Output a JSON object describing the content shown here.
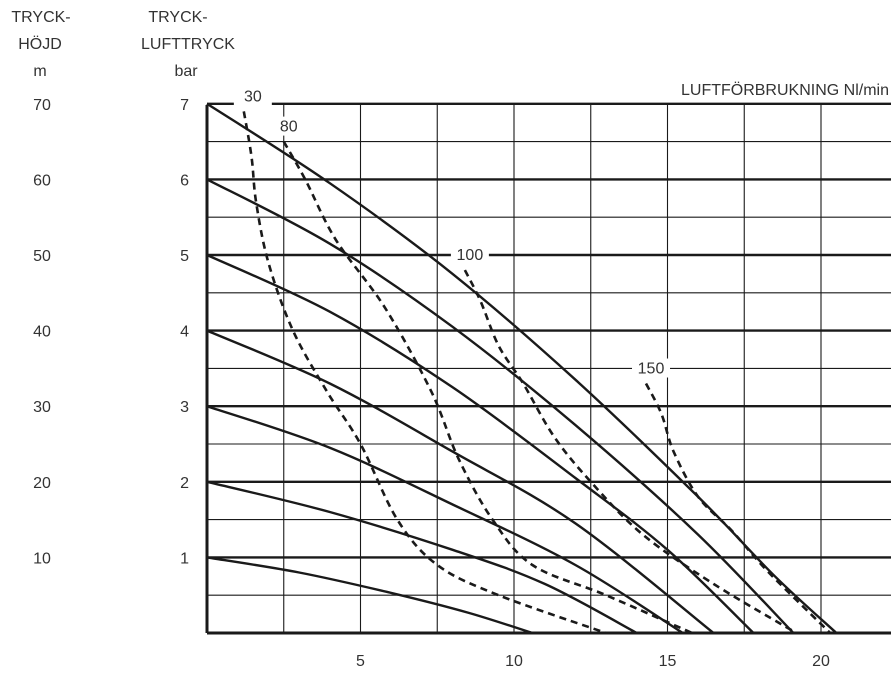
{
  "chart_data": {
    "type": "line",
    "title": "",
    "left_axis_head": [
      "TRYCK-",
      "HÖJD",
      "m"
    ],
    "right_axis_head": [
      "TRYCK-",
      "LUFTTRYCK",
      "bar"
    ],
    "consumption_title": "LUFTFÖRBRUKNING Nl/min",
    "xlim": [
      0,
      22
    ],
    "ylim": [
      0,
      7
    ],
    "x_ticks": [
      "5",
      "10",
      "15",
      "20"
    ],
    "x_tick_values": [
      5,
      10,
      15,
      20
    ],
    "bar_ticks": [
      "1",
      "2",
      "3",
      "4",
      "5",
      "6",
      "7"
    ],
    "height_ticks": [
      "10",
      "20",
      "30",
      "40",
      "50",
      "60",
      "70"
    ],
    "grid": true,
    "pressure_curves": [
      {
        "air_bar": 1,
        "points": [
          [
            0,
            1
          ],
          [
            3,
            0.8
          ],
          [
            6,
            0.53
          ],
          [
            8.5,
            0.27
          ],
          [
            10.6,
            0
          ]
        ]
      },
      {
        "air_bar": 2,
        "points": [
          [
            0,
            2
          ],
          [
            4,
            1.6
          ],
          [
            8,
            1.1
          ],
          [
            11,
            0.65
          ],
          [
            14,
            0
          ]
        ]
      },
      {
        "air_bar": 3,
        "points": [
          [
            0,
            3
          ],
          [
            4,
            2.45
          ],
          [
            8,
            1.7
          ],
          [
            12,
            0.9
          ],
          [
            15.5,
            0
          ]
        ]
      },
      {
        "air_bar": 4,
        "points": [
          [
            0,
            4
          ],
          [
            4,
            3.3
          ],
          [
            8,
            2.4
          ],
          [
            12,
            1.45
          ],
          [
            16.5,
            0
          ]
        ]
      },
      {
        "air_bar": 5,
        "points": [
          [
            0,
            5
          ],
          [
            4,
            4.25
          ],
          [
            8,
            3.25
          ],
          [
            12,
            2.05
          ],
          [
            15,
            1.1
          ],
          [
            17.8,
            0
          ]
        ]
      },
      {
        "air_bar": 6,
        "points": [
          [
            0,
            6
          ],
          [
            4,
            5.15
          ],
          [
            8,
            4.05
          ],
          [
            12,
            2.75
          ],
          [
            16,
            1.3
          ],
          [
            19.1,
            0
          ]
        ]
      },
      {
        "air_bar": 7,
        "points": [
          [
            0,
            7
          ],
          [
            4,
            5.95
          ],
          [
            8,
            4.75
          ],
          [
            12,
            3.35
          ],
          [
            16,
            1.8
          ],
          [
            18.5,
            0.75
          ],
          [
            20.5,
            0
          ]
        ]
      }
    ],
    "consumption_curves": [
      {
        "label": "30",
        "points": [
          [
            1.2,
            6.9
          ],
          [
            1.45,
            6.3
          ],
          [
            1.6,
            5.7
          ],
          [
            2,
            4.9
          ],
          [
            2.8,
            4.0
          ],
          [
            3.9,
            3.2
          ],
          [
            5,
            2.5
          ],
          [
            6.2,
            1.5
          ],
          [
            7.5,
            0.9
          ],
          [
            9.5,
            0.5
          ],
          [
            13,
            0
          ]
        ]
      },
      {
        "label": "80",
        "points": [
          [
            2.5,
            6.5
          ],
          [
            3.2,
            6.0
          ],
          [
            4.2,
            5.2
          ],
          [
            5.8,
            4.3
          ],
          [
            7.3,
            3.2
          ],
          [
            8.2,
            2.3
          ],
          [
            9.3,
            1.5
          ],
          [
            10.6,
            0.9
          ],
          [
            13,
            0.5
          ],
          [
            15.8,
            0
          ]
        ]
      },
      {
        "label": "100",
        "points": [
          [
            8.4,
            4.8
          ],
          [
            8.9,
            4.4
          ],
          [
            9.5,
            3.8
          ],
          [
            10.3,
            3.3
          ],
          [
            11.3,
            2.6
          ],
          [
            12.5,
            2.0
          ],
          [
            14.2,
            1.3
          ],
          [
            16.5,
            0.65
          ],
          [
            19.2,
            0
          ]
        ]
      },
      {
        "label": "150",
        "points": [
          [
            14.3,
            3.3
          ],
          [
            14.8,
            2.9
          ],
          [
            15.2,
            2.4
          ],
          [
            16,
            1.8
          ],
          [
            17.1,
            1.35
          ],
          [
            18.3,
            0.8
          ],
          [
            20.3,
            0
          ]
        ]
      }
    ]
  }
}
